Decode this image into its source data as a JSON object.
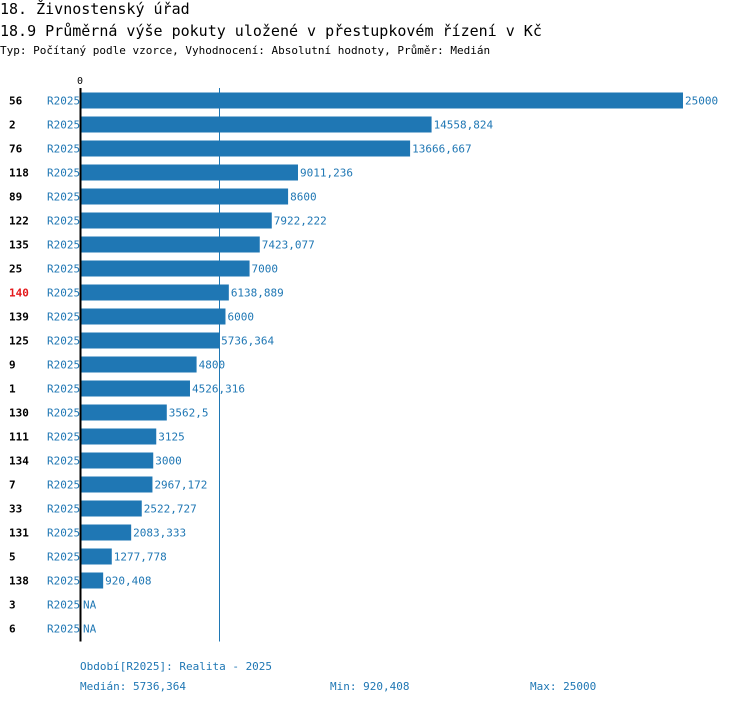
{
  "header": {
    "section": "18. Živnostenský úřad",
    "indicator": "18.9 Průměrná výše pokuty uložené v přestupkovém řízení v Kč",
    "type_line": "Typ: Počítaný podle vzorce, Vyhodnocení: Absolutní hodnoty, Průměr: Medián"
  },
  "chart_data": {
    "type": "bar",
    "orientation": "horizontal",
    "axis_zero_label": "0",
    "xlim": [
      0,
      25000
    ],
    "median": 5736.364,
    "bar_color": "#1f77b4",
    "highlight_color": "#e41a1c",
    "rows": [
      {
        "id": "56",
        "series": "R2025",
        "value": 25000,
        "label": "25000",
        "highlight": false
      },
      {
        "id": "2",
        "series": "R2025",
        "value": 14558.824,
        "label": "14558,824",
        "highlight": false
      },
      {
        "id": "76",
        "series": "R2025",
        "value": 13666.667,
        "label": "13666,667",
        "highlight": false
      },
      {
        "id": "118",
        "series": "R2025",
        "value": 9011.236,
        "label": "9011,236",
        "highlight": false
      },
      {
        "id": "89",
        "series": "R2025",
        "value": 8600,
        "label": "8600",
        "highlight": false
      },
      {
        "id": "122",
        "series": "R2025",
        "value": 7922.222,
        "label": "7922,222",
        "highlight": false
      },
      {
        "id": "135",
        "series": "R2025",
        "value": 7423.077,
        "label": "7423,077",
        "highlight": false
      },
      {
        "id": "25",
        "series": "R2025",
        "value": 7000,
        "label": "7000",
        "highlight": false
      },
      {
        "id": "140",
        "series": "R2025",
        "value": 6138.889,
        "label": "6138,889",
        "highlight": true
      },
      {
        "id": "139",
        "series": "R2025",
        "value": 6000,
        "label": "6000",
        "highlight": false
      },
      {
        "id": "125",
        "series": "R2025",
        "value": 5736.364,
        "label": "5736,364",
        "highlight": false
      },
      {
        "id": "9",
        "series": "R2025",
        "value": 4800,
        "label": "4800",
        "highlight": false
      },
      {
        "id": "1",
        "series": "R2025",
        "value": 4526.316,
        "label": "4526,316",
        "highlight": false
      },
      {
        "id": "130",
        "series": "R2025",
        "value": 3562.5,
        "label": "3562,5",
        "highlight": false
      },
      {
        "id": "111",
        "series": "R2025",
        "value": 3125,
        "label": "3125",
        "highlight": false
      },
      {
        "id": "134",
        "series": "R2025",
        "value": 3000,
        "label": "3000",
        "highlight": false
      },
      {
        "id": "7",
        "series": "R2025",
        "value": 2967.172,
        "label": "2967,172",
        "highlight": false
      },
      {
        "id": "33",
        "series": "R2025",
        "value": 2522.727,
        "label": "2522,727",
        "highlight": false
      },
      {
        "id": "131",
        "series": "R2025",
        "value": 2083.333,
        "label": "2083,333",
        "highlight": false
      },
      {
        "id": "5",
        "series": "R2025",
        "value": 1277.778,
        "label": "1277,778",
        "highlight": false
      },
      {
        "id": "138",
        "series": "R2025",
        "value": 920.408,
        "label": "920,408",
        "highlight": false
      },
      {
        "id": "3",
        "series": "R2025",
        "value": null,
        "label": "NA",
        "highlight": false
      },
      {
        "id": "6",
        "series": "R2025",
        "value": null,
        "label": "NA",
        "highlight": false
      }
    ]
  },
  "footer": {
    "period": "Období[R2025]: Realita - 2025",
    "median": "Medián: 5736,364",
    "min": "Min: 920,408",
    "max": "Max: 25000"
  }
}
